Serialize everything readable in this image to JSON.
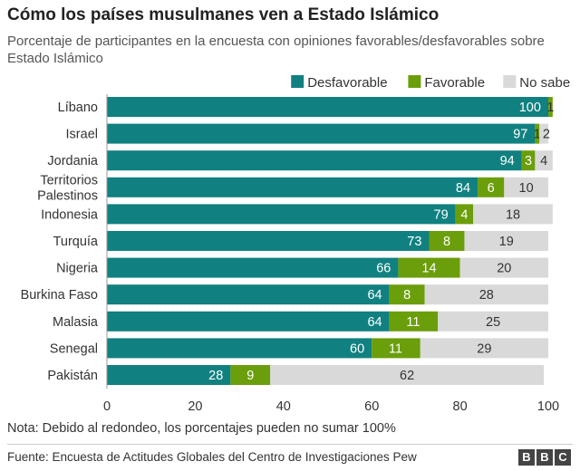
{
  "title": "Cómo los países musulmanes ven a Estado Islámico",
  "subtitle": "Porcentaje de participantes en la encuesta con opiniones favorables/desfavorables sobre Estado Islámico",
  "note": "Nota: Debido al redondeo, los porcentajes pueden no sumar 100%",
  "source": "Fuente: Encuesta de Actitudes Globales del Centro de Investigaciones Pew",
  "logo": [
    "B",
    "B",
    "C"
  ],
  "chart_data": {
    "type": "bar",
    "orientation": "horizontal",
    "stacked": true,
    "categories": [
      "Líbano",
      "Israel",
      "Jordania",
      "Territorios Palestinos",
      "Indonesia",
      "Turquía",
      "Nigeria",
      "Burkina Faso",
      "Malasia",
      "Senegal",
      "Pakistán"
    ],
    "series": [
      {
        "name": "Desfavorable",
        "color": "#118080",
        "values": [
          100,
          97,
          94,
          84,
          79,
          73,
          66,
          64,
          64,
          60,
          28
        ]
      },
      {
        "name": "Favorable",
        "color": "#6b9e0b",
        "values": [
          1,
          1,
          3,
          6,
          4,
          8,
          14,
          8,
          11,
          11,
          9
        ]
      },
      {
        "name": "No sabe",
        "color": "#d9d9d9",
        "values": [
          0,
          2,
          4,
          10,
          18,
          19,
          20,
          28,
          25,
          29,
          62
        ]
      }
    ],
    "xlim": [
      0,
      100
    ],
    "xticks": [
      0,
      20,
      40,
      60,
      80,
      100
    ],
    "legend": "top-right",
    "grid": false
  }
}
